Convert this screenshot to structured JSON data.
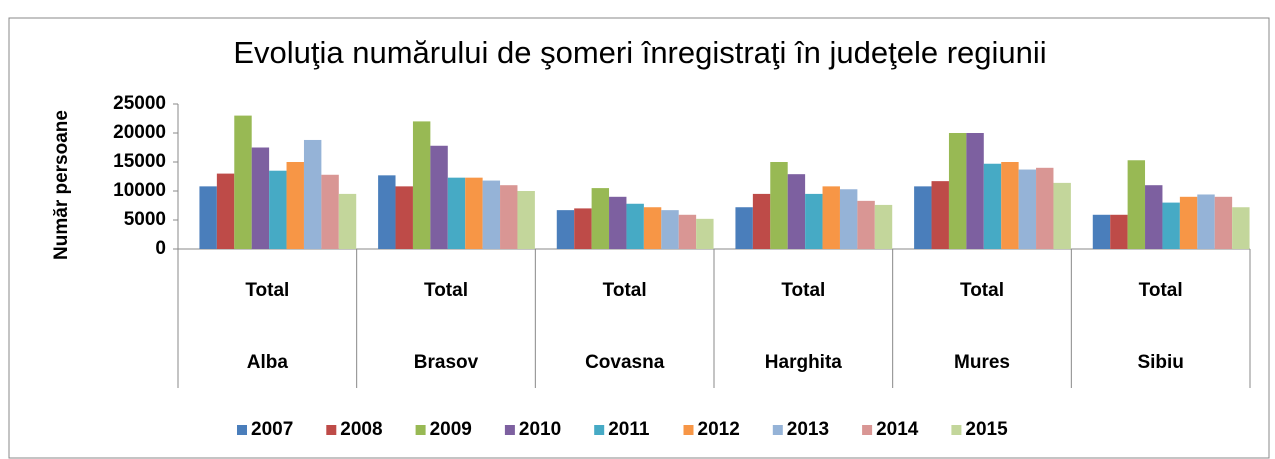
{
  "chart_data": {
    "type": "bar",
    "title": "Evoluţia numărului de şomeri înregistraţi în judeţele regiunii",
    "y_label": "Număr persoane",
    "categories": [
      "Alba",
      "Brasov",
      "Covasna",
      "Harghita",
      "Mures",
      "Sibiu"
    ],
    "category_sublabels": [
      "Total",
      "Total",
      "Total",
      "Total",
      "Total",
      "Total"
    ],
    "ylim": [
      0,
      25000
    ],
    "yticks": [
      0,
      5000,
      10000,
      15000,
      20000,
      25000
    ],
    "grid": false,
    "legend": "bottom",
    "series": [
      {
        "name": "2007",
        "color": "#4a7ebb",
        "values": [
          10800,
          12700,
          6700,
          7200,
          10800,
          5900
        ]
      },
      {
        "name": "2008",
        "color": "#be4b48",
        "values": [
          13000,
          10800,
          7000,
          9500,
          11700,
          5900
        ]
      },
      {
        "name": "2009",
        "color": "#98b954",
        "values": [
          23000,
          22000,
          10500,
          15000,
          20000,
          15300
        ]
      },
      {
        "name": "2010",
        "color": "#7d60a0",
        "values": [
          17500,
          17800,
          9000,
          12900,
          20000,
          11000
        ]
      },
      {
        "name": "2011",
        "color": "#46aac5",
        "values": [
          13500,
          12300,
          7800,
          9500,
          14700,
          8000
        ]
      },
      {
        "name": "2012",
        "color": "#f79646",
        "values": [
          15000,
          12300,
          7200,
          10800,
          15000,
          9000
        ]
      },
      {
        "name": "2013",
        "color": "#95b3d7",
        "values": [
          18800,
          11800,
          6700,
          10300,
          13700,
          9400
        ]
      },
      {
        "name": "2014",
        "color": "#d99694",
        "values": [
          12800,
          11000,
          5900,
          8300,
          14000,
          9000
        ]
      },
      {
        "name": "2015",
        "color": "#c3d69b",
        "values": [
          9500,
          10000,
          5200,
          7600,
          11400,
          7200
        ]
      }
    ]
  }
}
